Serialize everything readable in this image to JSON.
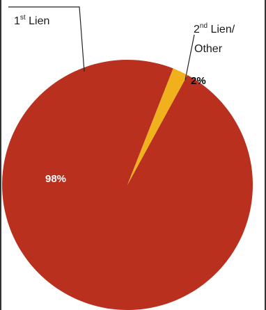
{
  "chart_data": {
    "type": "pie",
    "title": "",
    "slices": [
      {
        "label_prefix": "1",
        "label_sup": "st",
        "label_suffix": " Lien",
        "value": 98,
        "value_label": "98%",
        "color": "#b9301e"
      },
      {
        "label_prefix": "2",
        "label_sup": "nd",
        "label_suffix": " Lien/",
        "label_line2": "Other",
        "value": 2,
        "value_label": "2%",
        "color": "#f0b11d"
      }
    ]
  }
}
